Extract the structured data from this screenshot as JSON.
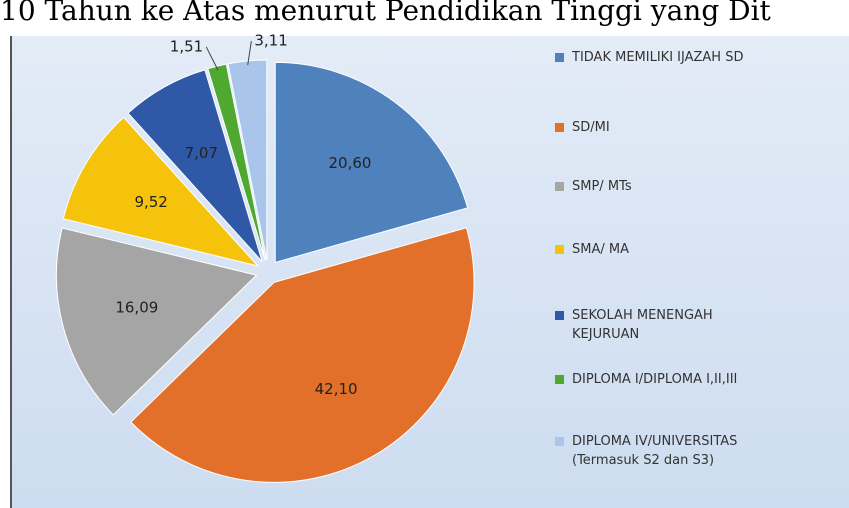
{
  "chart_data": {
    "type": "pie",
    "title": "10 Tahun ke Atas menurut Pendidikan Tinggi yang Dit",
    "categories": [
      "TIDAK MEMILIKI IJAZAH SD",
      "SD/MI",
      "SMP/ MTs",
      "SMA/ MA",
      "SEKOLAH MENENGAH KEJURUAN",
      "DIPLOMA I/DIPLOMA I,II,III",
      "DIPLOMA IV/UNIVERSITAS (Termasuk S2 dan S3)"
    ],
    "values": [
      20.6,
      42.1,
      16.09,
      9.52,
      7.07,
      1.51,
      3.11
    ],
    "value_labels": [
      "20,60",
      "42,10",
      "16,09",
      "9,52",
      "7,07",
      "1,51",
      "3,11"
    ],
    "colors": [
      "#4f81bd",
      "#e26f2a",
      "#a5a5a5",
      "#f5c20c",
      "#2f58a6",
      "#4fa82f",
      "#a9c5e9"
    ],
    "legend": "right"
  }
}
